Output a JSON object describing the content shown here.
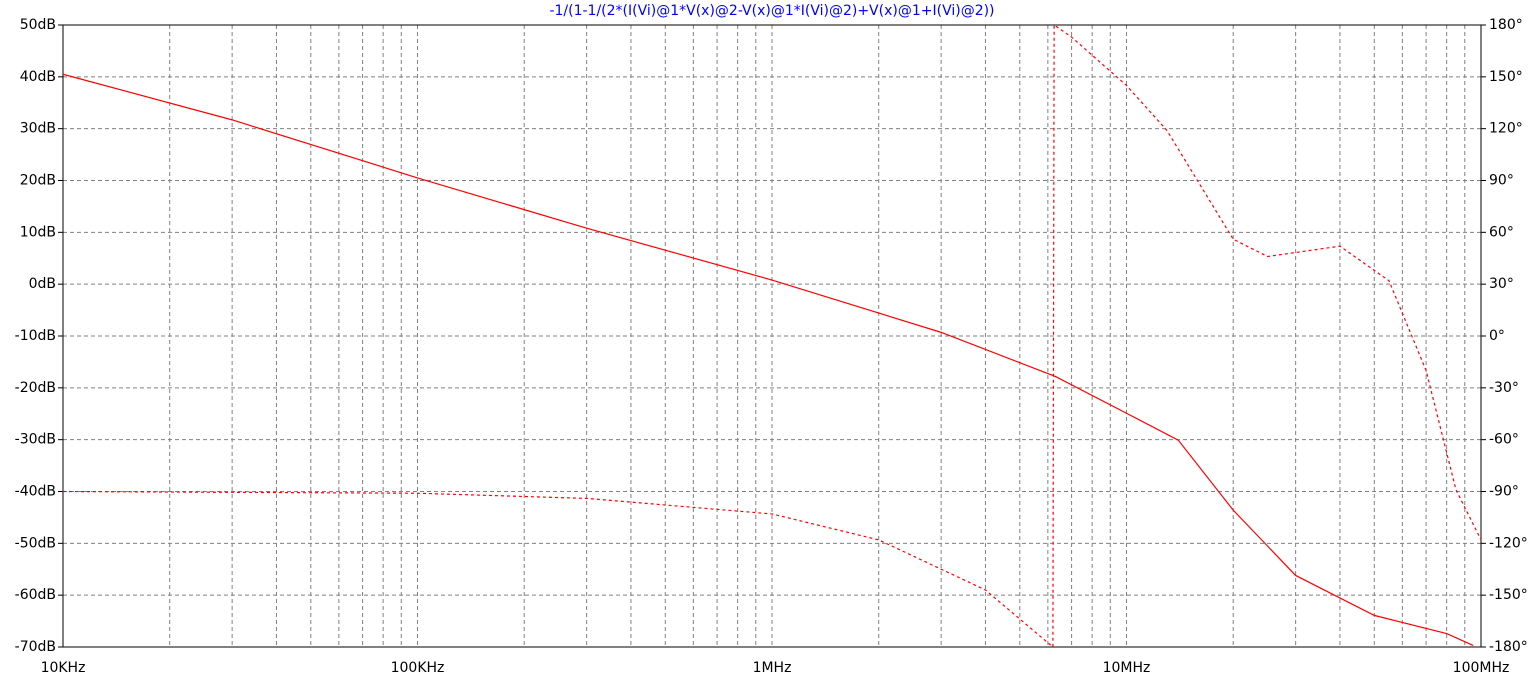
{
  "chart_data": {
    "type": "line",
    "title": "-1/(1-1/(2*(I(Vi)@1*V(x)@2-V(x)@1*I(Vi)@2)+V(x)@1+I(Vi)@2))",
    "title_color": "#0000ff",
    "xscale": "log",
    "grid": true,
    "xlim": [
      10000,
      100000000
    ],
    "xticks": [
      {
        "value": 10000,
        "label": "10KHz"
      },
      {
        "value": 100000,
        "label": "100KHz"
      },
      {
        "value": 1000000,
        "label": "1MHz"
      },
      {
        "value": 10000000,
        "label": "10MHz"
      },
      {
        "value": 100000000,
        "label": "100MHz"
      }
    ],
    "ylim": [
      -70,
      50
    ],
    "yticks": [
      {
        "value": 50,
        "label": "50dB"
      },
      {
        "value": 40,
        "label": "40dB"
      },
      {
        "value": 30,
        "label": "30dB"
      },
      {
        "value": 20,
        "label": "20dB"
      },
      {
        "value": 10,
        "label": "10dB"
      },
      {
        "value": 0,
        "label": "0dB"
      },
      {
        "value": -10,
        "label": "-10dB"
      },
      {
        "value": -20,
        "label": "-20dB"
      },
      {
        "value": -30,
        "label": "-30dB"
      },
      {
        "value": -40,
        "label": "-40dB"
      },
      {
        "value": -50,
        "label": "-50dB"
      },
      {
        "value": -60,
        "label": "-60dB"
      },
      {
        "value": -70,
        "label": "-70dB"
      }
    ],
    "y2lim": [
      -180,
      180
    ],
    "y2ticks": [
      {
        "value": 180,
        "label": "180°"
      },
      {
        "value": 150,
        "label": "150°"
      },
      {
        "value": 120,
        "label": "120°"
      },
      {
        "value": 90,
        "label": "90°"
      },
      {
        "value": 60,
        "label": "60°"
      },
      {
        "value": 30,
        "label": "30°"
      },
      {
        "value": 0,
        "label": "0°"
      },
      {
        "value": -30,
        "label": "-30°"
      },
      {
        "value": -60,
        "label": "-60°"
      },
      {
        "value": -90,
        "label": "-90°"
      },
      {
        "value": -120,
        "label": "-120°"
      },
      {
        "value": -150,
        "label": "-150°"
      },
      {
        "value": -180,
        "label": "-180°"
      }
    ],
    "series": [
      {
        "color": "#ff0000",
        "line_style": "solid",
        "x": [
          10000,
          30000,
          100000,
          300000,
          1000000,
          3000000,
          6300000,
          10000000,
          14000000,
          20000000,
          30000000,
          50000000,
          80000000,
          95000000
        ],
        "values": [
          40.5,
          31.7,
          20.5,
          10.8,
          0.8,
          -9.3,
          -17.8,
          -24.9,
          -30.1,
          -43.6,
          -56.2,
          -63.9,
          -67.4,
          -69.7
        ]
      },
      {
        "color": "#ff0000",
        "line_style": "dashed",
        "axis": "y2",
        "x": [
          10000,
          100000,
          300000,
          1000000,
          2000000,
          4000000,
          6200000,
          6250000,
          7000000,
          10000000,
          13000000,
          20000000,
          25000000,
          40000000,
          55000000,
          70000000,
          85000000,
          100000000
        ],
        "values": [
          -90,
          -91,
          -94,
          -103,
          -118,
          -147,
          -180,
          180,
          173,
          145,
          119,
          56,
          46,
          52,
          32,
          -20,
          -89,
          -118
        ]
      }
    ]
  }
}
